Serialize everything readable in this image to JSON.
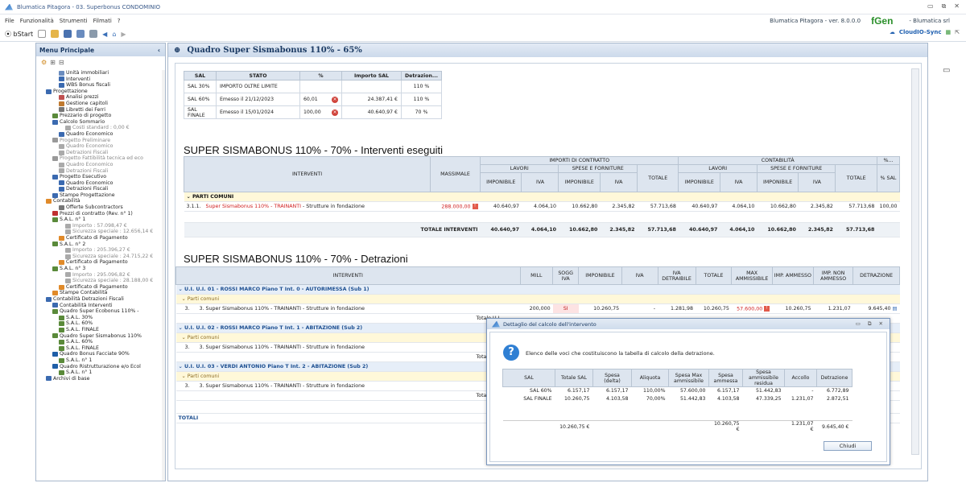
{
  "window": {
    "title": "Blumatica Pitagora - 03. Superbonus CONDOMINIO"
  },
  "menu": {
    "items": [
      "File",
      "Funzionalità",
      "Strumenti",
      "Filmati",
      "?"
    ],
    "version": "Blumatica Pitagora - ver. 8.0.0.0",
    "brand": "Blumatica srl",
    "gen": "Gen"
  },
  "toolbar": {
    "start": "bStart",
    "cloud": "CloudIO-Sync"
  },
  "left": {
    "title": "Menu Principale",
    "tree": [
      {
        "t": "Unità immobiliari",
        "l": 3,
        "c": "#6a8cbf"
      },
      {
        "t": "Interventi",
        "l": 3,
        "c": "#3b6ab0"
      },
      {
        "t": "WBS Bonus fiscali",
        "l": 3,
        "c": "#3b6ab0"
      },
      {
        "t": "Progettazione",
        "l": 1,
        "c": "#3b6ab0"
      },
      {
        "t": "Analisi prezzi",
        "l": 3,
        "c": "#c05050"
      },
      {
        "t": "Gestione capitoli",
        "l": 3,
        "c": "#c07a30"
      },
      {
        "t": "Libretti dei Ferri",
        "l": 3,
        "c": "#777"
      },
      {
        "t": "Prezzario di progetto",
        "l": 2,
        "c": "#5a8a3a"
      },
      {
        "t": "Calcolo Sommario",
        "l": 2,
        "c": "#3b6ab0"
      },
      {
        "t": "Costi standard : 0,00 €",
        "l": 4,
        "c": "#aaa",
        "sub": true
      },
      {
        "t": "Quadro Economico",
        "l": 3,
        "c": "#3b6ab0"
      },
      {
        "t": "Progetto Preliminare",
        "l": 2,
        "c": "#999",
        "sub": true
      },
      {
        "t": "Quadro Economico",
        "l": 3,
        "c": "#aaa",
        "sub": true
      },
      {
        "t": "Detrazioni Fiscali",
        "l": 3,
        "c": "#aaa",
        "sub": true
      },
      {
        "t": "Progetto Fattibilità tecnica ed eco",
        "l": 2,
        "c": "#999",
        "sub": true
      },
      {
        "t": "Quadro Economico",
        "l": 3,
        "c": "#aaa",
        "sub": true
      },
      {
        "t": "Detrazioni Fiscali",
        "l": 3,
        "c": "#aaa",
        "sub": true
      },
      {
        "t": "Progetto Esecutivo",
        "l": 2,
        "c": "#3b6ab0"
      },
      {
        "t": "Quadro Economico",
        "l": 3,
        "c": "#3b6ab0"
      },
      {
        "t": "Detrazioni Fiscali",
        "l": 3,
        "c": "#3b6ab0"
      },
      {
        "t": "Stampe Progettazione",
        "l": 2,
        "c": "#3b6ab0"
      },
      {
        "t": "Contabilità",
        "l": 1,
        "c": "#e08a2a"
      },
      {
        "t": "Offerte Subcontractors",
        "l": 3,
        "c": "#777"
      },
      {
        "t": "Prezzi di contratto (Rev. n° 1)",
        "l": 2,
        "c": "#c03030"
      },
      {
        "t": "S.A.L. n° 1",
        "l": 2,
        "c": "#5a8a3a"
      },
      {
        "t": "Importo : 57.098,47 €",
        "l": 4,
        "c": "#aaa",
        "sub": true
      },
      {
        "t": "Sicurezza speciale : 12.656,14 €",
        "l": 4,
        "c": "#aaa",
        "sub": true
      },
      {
        "t": "Certificato di Pagamento",
        "l": 3,
        "c": "#e08a2a"
      },
      {
        "t": "S.A.L. n° 2",
        "l": 2,
        "c": "#5a8a3a"
      },
      {
        "t": "Importo : 205.396,27 €",
        "l": 4,
        "c": "#aaa",
        "sub": true
      },
      {
        "t": "Sicurezza speciale : 24.715,22 €",
        "l": 4,
        "c": "#aaa",
        "sub": true
      },
      {
        "t": "Certificato di Pagamento",
        "l": 3,
        "c": "#e08a2a"
      },
      {
        "t": "S.A.L. n° 3",
        "l": 2,
        "c": "#5a8a3a"
      },
      {
        "t": "Importo : 295.096,82 €",
        "l": 4,
        "c": "#aaa",
        "sub": true
      },
      {
        "t": "Sicurezza speciale : 28.188,00 €",
        "l": 4,
        "c": "#aaa",
        "sub": true
      },
      {
        "t": "Certificato di Pagamento",
        "l": 3,
        "c": "#e08a2a"
      },
      {
        "t": "Stampe Contabilità",
        "l": 2,
        "c": "#e08a2a"
      },
      {
        "t": "Contabilità Detrazioni Fiscali",
        "l": 1,
        "c": "#3b6ab0"
      },
      {
        "t": "Contabilità Interventi",
        "l": 2,
        "c": "#3b6ab0"
      },
      {
        "t": "Quadro Super Ecobonus 110% -",
        "l": 2,
        "c": "#5a8a3a"
      },
      {
        "t": "S.A.L. 30%",
        "l": 3,
        "c": "#5a8a3a"
      },
      {
        "t": "S.A.L. 60%",
        "l": 3,
        "c": "#5a8a3a"
      },
      {
        "t": "S.A.L. FINALE",
        "l": 3,
        "c": "#5a8a3a"
      },
      {
        "t": "Quadro Super Sismabonus 110%",
        "l": 2,
        "c": "#5a8a3a"
      },
      {
        "t": "S.A.L. 60%",
        "l": 3,
        "c": "#5a8a3a"
      },
      {
        "t": "S.A.L. FINALE",
        "l": 3,
        "c": "#5a8a3a"
      },
      {
        "t": "Quadro Bonus Facciate 90%",
        "l": 2,
        "c": "#1f5fa8"
      },
      {
        "t": "S.A.L. n° 1",
        "l": 3,
        "c": "#5a8a3a"
      },
      {
        "t": "Quadro Ristrutturazione e/o Ecol",
        "l": 2,
        "c": "#1f5fa8"
      },
      {
        "t": "S.A.L. n° 1",
        "l": 3,
        "c": "#5a8a3a"
      },
      {
        "t": "Archivi di base",
        "l": 1,
        "c": "#3b6ab0"
      }
    ]
  },
  "main": {
    "title": "Quadro Super Sismabonus 110% - 65%"
  },
  "sal": {
    "headers": [
      "SAL",
      "STATO",
      "%",
      "Importo SAL",
      "Detrazion..."
    ],
    "rows": [
      [
        "SAL 30%",
        "IMPORTO OLTRE LIMITE",
        "",
        "",
        "110 %"
      ],
      [
        "SAL 60%",
        "Emesso il 21/12/2023",
        "60,01",
        "24.387,41 €",
        "110 %"
      ],
      [
        "SAL FINALE",
        "Emesso il 15/01/2024",
        "100,00",
        "40.640,97 €",
        "70 %"
      ]
    ]
  },
  "interventi": {
    "title": "SUPER SISMABONUS 110% - 70% - Interventi eseguiti",
    "h": {
      "interventi": "INTERVENTI",
      "massimale": "MASSIMALE",
      "importi": "IMPORTI DI CONTRATTO",
      "contabilita": "CONTABILITÀ",
      "pct": "%...",
      "lavori": "LAVORI",
      "spese": "SPESE E FORNITURE",
      "totale": "TOTALE",
      "imponibile": "IMPONIBILE",
      "iva": "IVA",
      "pctsal": "% SAL"
    },
    "group": "PARTI COMUNI",
    "row": {
      "code": "3.1.1.",
      "name": "Super Sismabonus 110% - TRAINANTI",
      "rest": "- Strutture in fondazione",
      "massimale": "288.000,00",
      "v": [
        "40.640,97",
        "4.064,10",
        "10.662,80",
        "2.345,82",
        "57.713,68",
        "40.640,97",
        "4.064,10",
        "10.662,80",
        "2.345,82",
        "57.713,68",
        "100,00"
      ]
    },
    "total_label": "TOTALE INTERVENTI",
    "totals": [
      "40.640,97",
      "4.064,10",
      "10.662,80",
      "2.345,82",
      "57.713,68",
      "40.640,97",
      "4.064,10",
      "10.662,80",
      "2.345,82",
      "57.713,68"
    ]
  },
  "detrazioni": {
    "title": "SUPER SISMABONUS 110% - 70% - Detrazioni",
    "h": [
      "INTERVENTI",
      "MILL",
      "SOGG IVA",
      "IMPONIBILE",
      "IVA",
      "IVA DETRAIBILE",
      "TOTALE",
      "MAX AMMISSIBILE",
      "IMP. AMMESSO",
      "IMP. NON AMMESSO",
      "DETRAZIONE"
    ],
    "ui1": "U.I. U.I. 01 - ROSSI MARCO Piano T Int. 0 - AUTORIMESSA (Sub 1)",
    "ui2": "U.I. U.I. 02 - ROSSI MARCO Piano T Int. 1 - ABITAZIONE (Sub 2)",
    "ui3": "U.I. U.I. 03 - VERDI ANTONIO Piano T Int. 2 - ABITAZIONE (Sub 2)",
    "parti": "Parti comuni",
    "rowcode": "3.",
    "rowtext": "3. Super Sismabonus 110% - TRAINANTI - Strutture in fondazione",
    "r1": [
      "200,000",
      "SI",
      "10.260,75",
      "-",
      "1.281,98",
      "10.260,75",
      "57.600,00",
      "10.260,75",
      "1.231,07",
      "9.645,40"
    ],
    "tot": "Totale U.I.",
    "totali": "TOTALI"
  },
  "dialog": {
    "title": "Dettaglio del calcolo dell'intervento",
    "desc": "Elenco delle voci che costituiscono la tabella di calcolo della detrazione.",
    "headers": [
      "SAL",
      "Totale SAL",
      "Spesa (delta)",
      "Aliquota",
      "Spesa Max ammissibile",
      "Spesa ammessa",
      "Spesa ammissibile residua",
      "Accollo",
      "Detrazione"
    ],
    "rows": [
      [
        "SAL 60%",
        "6.157,17",
        "6.157,17",
        "110,00%",
        "57.600,00",
        "6.157,17",
        "51.442,83",
        "-",
        "6.772,89"
      ],
      [
        "SAL FINALE",
        "10.260,75",
        "4.103,58",
        "70,00%",
        "51.442,83",
        "4.103,58",
        "47.339,25",
        "1.231,07",
        "2.872,51"
      ]
    ],
    "totals": [
      "10.260,75 €",
      "10.260,75 €",
      "1.231,07 €",
      "9.645,40 €"
    ],
    "close": "Chiudi"
  }
}
